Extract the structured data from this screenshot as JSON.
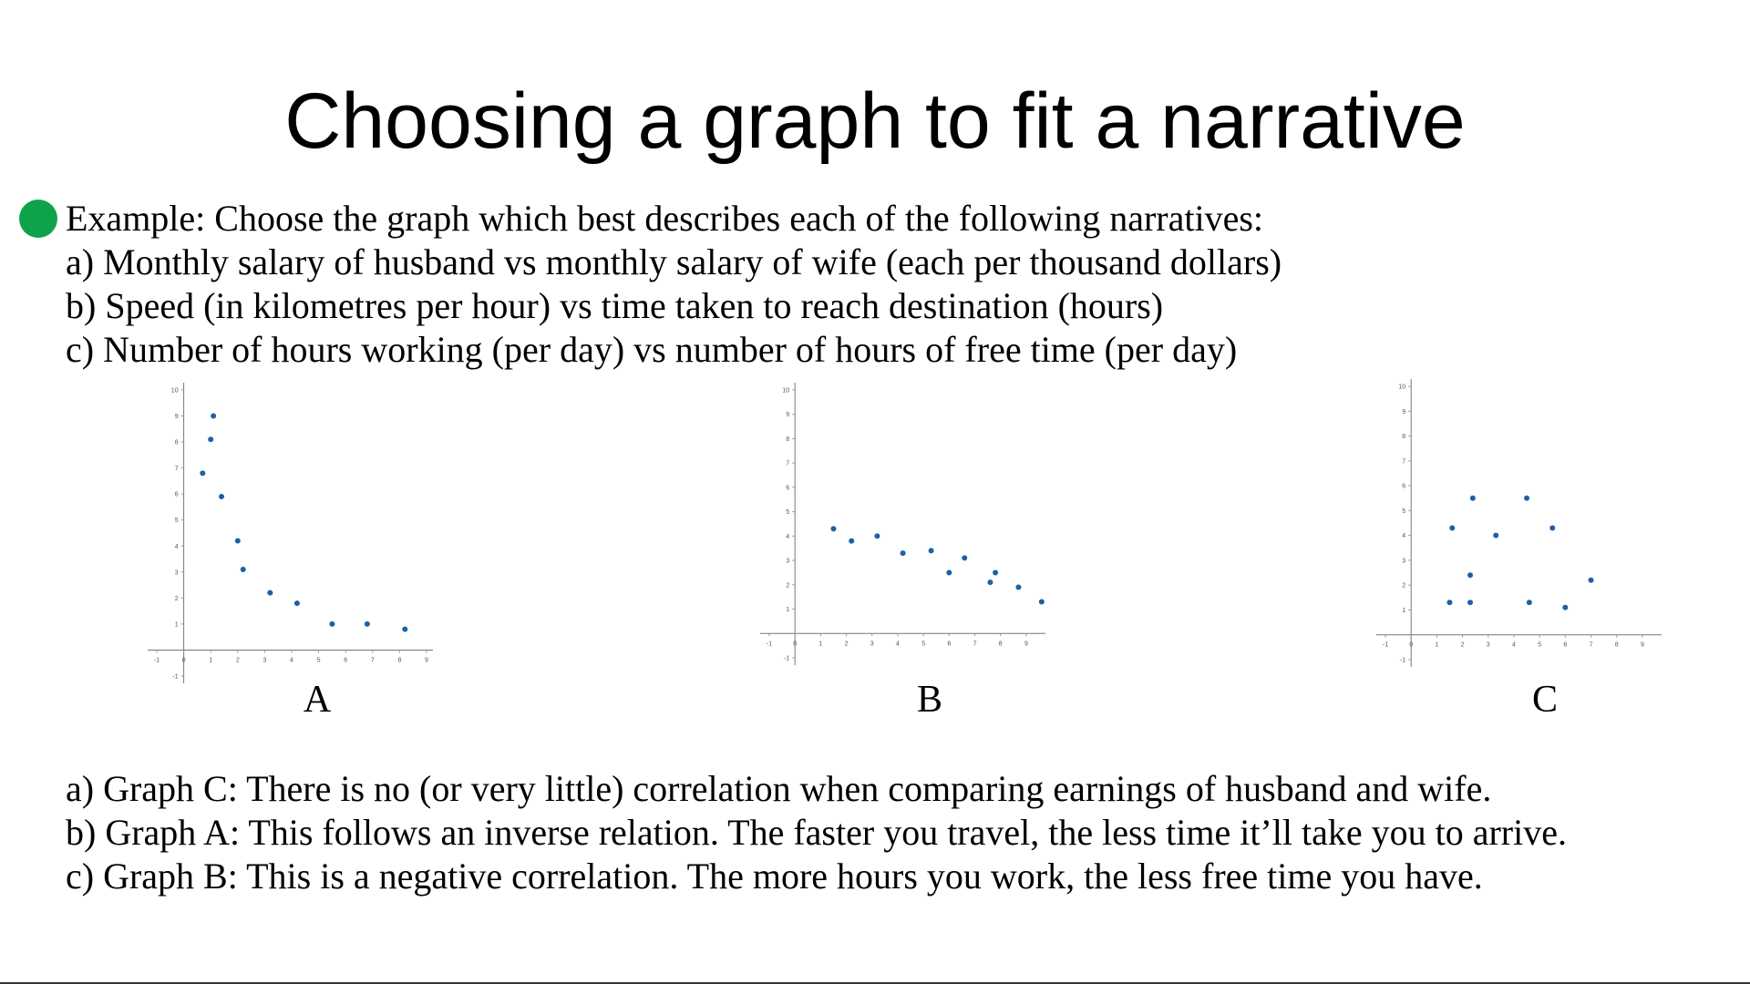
{
  "slide": {
    "title": "Choosing a graph to fit a narrative",
    "prompt_lines": [
      "Example: Choose the graph which best describes each of the following narratives:",
      "a) Monthly salary of husband vs monthly salary of wife (each per thousand dollars)",
      "b) Speed (in kilometres per hour) vs time taken to reach destination (hours)",
      "c) Number of hours working (per day) vs number of hours of free time (per day)"
    ],
    "answer_lines": [
      "a) Graph C: There is no (or very little) correlation when comparing earnings of husband and wife.",
      "b) Graph A: This follows an inverse relation. The faster you travel, the less time it’ll take you to arrive.",
      "c) Graph B: This is a negative correlation. The more hours you work, the less free time you have."
    ],
    "bullet_color": "#0ea34a",
    "point_color": "#1f5fa5"
  },
  "chart_data": [
    {
      "type": "scatter",
      "label": "A",
      "xlim": [
        -1,
        9
      ],
      "ylim": [
        -1,
        10
      ],
      "x_ticks": [
        "-1",
        "0",
        "1",
        "2",
        "3",
        "4",
        "5",
        "6",
        "7",
        "8",
        "9"
      ],
      "y_ticks": [
        "-1",
        "1",
        "2",
        "3",
        "4",
        "5",
        "6",
        "7",
        "8",
        "9",
        "10"
      ],
      "points": [
        [
          0.7,
          6.8
        ],
        [
          1.0,
          8.1
        ],
        [
          1.1,
          9.0
        ],
        [
          1.4,
          5.9
        ],
        [
          2.0,
          4.2
        ],
        [
          2.2,
          3.1
        ],
        [
          3.2,
          2.2
        ],
        [
          4.2,
          1.8
        ],
        [
          5.5,
          1.0
        ],
        [
          6.8,
          1.0
        ],
        [
          8.2,
          0.8
        ]
      ]
    },
    {
      "type": "scatter",
      "label": "B",
      "xlim": [
        -1,
        9.5
      ],
      "ylim": [
        -1,
        10
      ],
      "x_ticks": [
        "-1",
        "0",
        "1",
        "2",
        "3",
        "4",
        "5",
        "6",
        "7",
        "8",
        "9"
      ],
      "y_ticks": [
        "-1",
        "1",
        "2",
        "3",
        "4",
        "5",
        "6",
        "7",
        "8",
        "9",
        "10"
      ],
      "points": [
        [
          1.5,
          4.3
        ],
        [
          2.2,
          3.8
        ],
        [
          3.2,
          4.0
        ],
        [
          4.2,
          3.3
        ],
        [
          5.3,
          3.4
        ],
        [
          6.0,
          2.5
        ],
        [
          6.6,
          3.1
        ],
        [
          7.6,
          2.1
        ],
        [
          7.8,
          2.5
        ],
        [
          8.7,
          1.9
        ],
        [
          9.6,
          1.3
        ]
      ]
    },
    {
      "type": "scatter",
      "label": "C",
      "xlim": [
        -1,
        9.5
      ],
      "ylim": [
        -1,
        10
      ],
      "x_ticks": [
        "-1",
        "0",
        "1",
        "2",
        "3",
        "4",
        "5",
        "6",
        "7",
        "8",
        "9"
      ],
      "y_ticks": [
        "-1",
        "1",
        "2",
        "3",
        "4",
        "5",
        "6",
        "7",
        "8",
        "9",
        "10"
      ],
      "points": [
        [
          1.5,
          1.3
        ],
        [
          1.6,
          4.3
        ],
        [
          2.3,
          2.4
        ],
        [
          2.3,
          1.3
        ],
        [
          2.4,
          5.5
        ],
        [
          3.3,
          4.0
        ],
        [
          4.5,
          5.5
        ],
        [
          4.6,
          1.3
        ],
        [
          5.5,
          4.3
        ],
        [
          6.0,
          1.1
        ],
        [
          7.0,
          2.2
        ]
      ]
    }
  ]
}
